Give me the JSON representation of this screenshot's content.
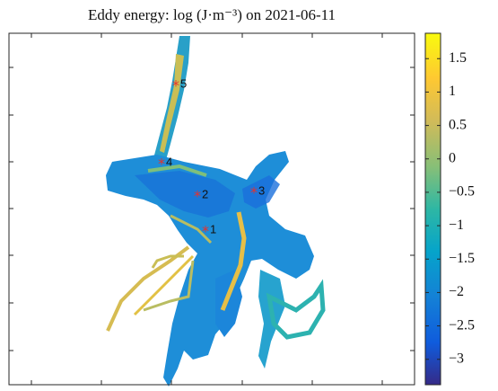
{
  "chart_data": {
    "type": "map",
    "title": "Eddy energy: log (J·m⁻³) on 2021-06-11",
    "colorbar": {
      "clim": [
        -3.38,
        1.88
      ],
      "ticks": [
        1.5,
        1,
        0.5,
        0,
        {
          "value": -0.5,
          "label": "−0.5"
        },
        {
          "value": -1,
          "label": "−1"
        },
        {
          "value": -1.5,
          "label": "−1.5"
        },
        {
          "value": -2,
          "label": "−2"
        },
        {
          "value": -2.5,
          "label": "−2.5"
        },
        {
          "value": -3,
          "label": "−3"
        }
      ]
    },
    "stations": [
      "1",
      "2",
      "3",
      "4",
      "5"
    ],
    "station_color": "#e8302a"
  }
}
